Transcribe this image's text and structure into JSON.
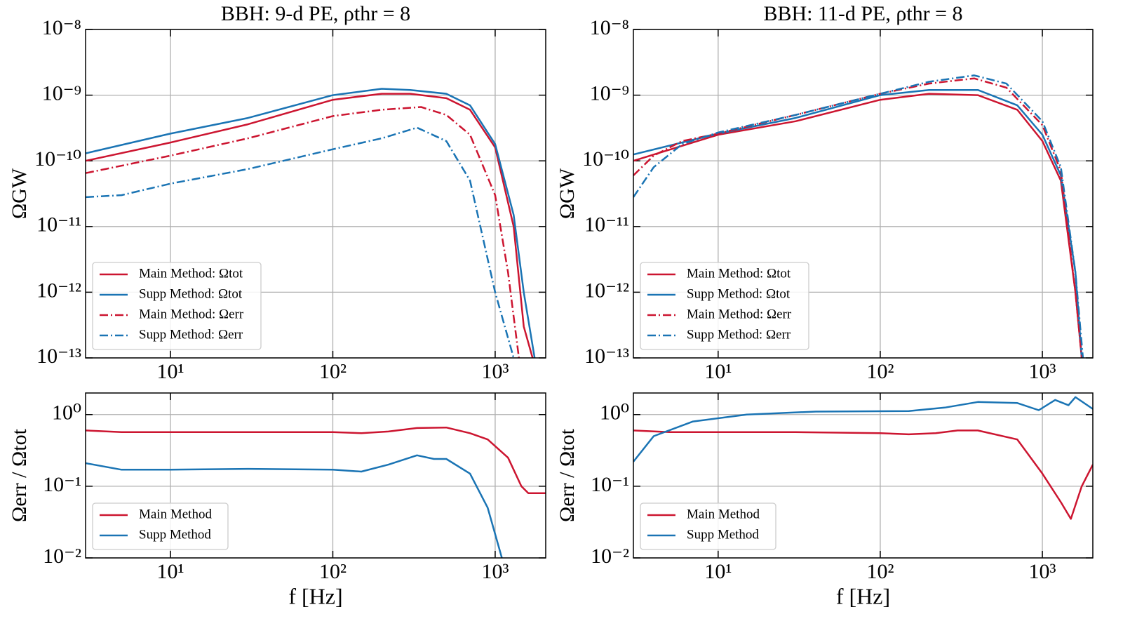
{
  "chart_data": [
    {
      "type": "line",
      "title": "BBH: 9-d PE, ρthr = 8",
      "ylabel": "ΩGW",
      "log_x": true,
      "log_y": true,
      "grid": true,
      "legend": "lower left",
      "xlim": [
        3,
        2048
      ],
      "xticks": [
        {
          "value": 10,
          "label": "10¹"
        },
        {
          "value": 100,
          "label": "10²"
        },
        {
          "value": 1000,
          "label": "10³"
        }
      ],
      "ylim": [
        1e-13,
        1e-08
      ],
      "yticks": [
        {
          "value": 1e-13,
          "label": "10⁻¹³"
        },
        {
          "value": 1e-12,
          "label": "10⁻¹²"
        },
        {
          "value": 1e-11,
          "label": "10⁻¹¹"
        },
        {
          "value": 1e-10,
          "label": "10⁻¹⁰"
        },
        {
          "value": 1e-09,
          "label": "10⁻⁹"
        },
        {
          "value": 1e-08,
          "label": "10⁻⁸"
        }
      ],
      "series": [
        {
          "name": "Main Method: Ωtot",
          "color": "#cc1530",
          "dash": "solid",
          "x": [
            3,
            10,
            30,
            100,
            200,
            300,
            500,
            700,
            1000,
            1300,
            1500,
            1700
          ],
          "values": [
            1e-10,
            1.9e-10,
            3.6e-10,
            8.5e-10,
            1.05e-09,
            1.05e-09,
            9e-10,
            6e-10,
            1.6e-10,
            1e-11,
            3e-13,
            1e-13
          ]
        },
        {
          "name": "Supp Method: Ωtot",
          "color": "#1a74b4",
          "dash": "solid",
          "x": [
            3,
            10,
            30,
            100,
            200,
            300,
            500,
            700,
            1000,
            1300,
            1500,
            1750
          ],
          "values": [
            1.3e-10,
            2.6e-10,
            4.5e-10,
            1e-09,
            1.25e-09,
            1.2e-09,
            1.05e-09,
            7e-10,
            1.8e-10,
            1.5e-11,
            1e-12,
            1e-13
          ]
        },
        {
          "name": "Main Method: Ωerr",
          "color": "#cc1530",
          "dash": "dashdot",
          "x": [
            3,
            10,
            30,
            100,
            200,
            350,
            500,
            700,
            1000,
            1200,
            1400
          ],
          "values": [
            6.5e-11,
            1.2e-10,
            2.2e-10,
            4.8e-10,
            6e-10,
            6.6e-10,
            5e-10,
            2.5e-10,
            3e-11,
            2e-12,
            1e-13
          ]
        },
        {
          "name": "Supp Method: Ωerr",
          "color": "#1a74b4",
          "dash": "dashdot",
          "x": [
            3,
            5,
            10,
            30,
            100,
            200,
            330,
            500,
            700,
            1000,
            1300
          ],
          "values": [
            2.8e-11,
            3e-11,
            4.5e-11,
            7.5e-11,
            1.5e-10,
            2.2e-10,
            3.2e-10,
            2e-10,
            5e-11,
            1e-12,
            1e-13
          ]
        }
      ]
    },
    {
      "type": "line",
      "xlabel": "f [Hz]",
      "ylabel": "Ωerr / Ωtot",
      "log_x": true,
      "log_y": true,
      "grid": true,
      "legend": "lower left",
      "xlim": [
        3,
        2048
      ],
      "xticks": [
        {
          "value": 10,
          "label": "10¹"
        },
        {
          "value": 100,
          "label": "10²"
        },
        {
          "value": 1000,
          "label": "10³"
        }
      ],
      "ylim": [
        0.01,
        2
      ],
      "yticks": [
        {
          "value": 0.01,
          "label": "10⁻²"
        },
        {
          "value": 0.1,
          "label": "10⁻¹"
        },
        {
          "value": 1,
          "label": "10⁰"
        }
      ],
      "series": [
        {
          "name": "Main Method",
          "color": "#cc1530",
          "dash": "solid",
          "x": [
            3,
            5,
            10,
            30,
            100,
            150,
            220,
            330,
            500,
            700,
            900,
            1200,
            1450,
            1600,
            2048
          ],
          "values": [
            0.6,
            0.57,
            0.57,
            0.57,
            0.57,
            0.55,
            0.58,
            0.65,
            0.66,
            0.55,
            0.45,
            0.25,
            0.1,
            0.08,
            0.08
          ]
        },
        {
          "name": "Supp Method",
          "color": "#1a74b4",
          "dash": "solid",
          "x": [
            3,
            5,
            10,
            30,
            100,
            150,
            220,
            330,
            420,
            500,
            700,
            900,
            1100
          ],
          "values": [
            0.21,
            0.17,
            0.17,
            0.175,
            0.17,
            0.16,
            0.2,
            0.27,
            0.24,
            0.24,
            0.15,
            0.05,
            0.01
          ]
        }
      ]
    },
    {
      "type": "line",
      "title": "BBH: 11-d PE, ρthr = 8",
      "ylabel": "ΩGW",
      "log_x": true,
      "log_y": true,
      "grid": true,
      "legend": "lower left",
      "xlim": [
        3,
        2048
      ],
      "xticks": [
        {
          "value": 10,
          "label": "10¹"
        },
        {
          "value": 100,
          "label": "10²"
        },
        {
          "value": 1000,
          "label": "10³"
        }
      ],
      "ylim": [
        1e-13,
        1e-08
      ],
      "yticks": [
        {
          "value": 1e-13,
          "label": "10⁻¹³"
        },
        {
          "value": 1e-12,
          "label": "10⁻¹²"
        },
        {
          "value": 1e-11,
          "label": "10⁻¹¹"
        },
        {
          "value": 1e-10,
          "label": "10⁻¹⁰"
        },
        {
          "value": 1e-09,
          "label": "10⁻⁹"
        },
        {
          "value": 1e-08,
          "label": "10⁻⁸"
        }
      ],
      "series": [
        {
          "name": "Main Method: Ωtot",
          "color": "#cc1530",
          "dash": "solid",
          "x": [
            3,
            10,
            30,
            100,
            200,
            400,
            700,
            1000,
            1300,
            1600,
            1750
          ],
          "values": [
            1e-10,
            2.5e-10,
            4e-10,
            8.5e-10,
            1.05e-09,
            1e-09,
            6e-10,
            2e-10,
            5e-11,
            1e-12,
            1e-13
          ]
        },
        {
          "name": "Supp Method: Ωtot",
          "color": "#1a74b4",
          "dash": "solid",
          "x": [
            3,
            10,
            30,
            100,
            200,
            400,
            700,
            1000,
            1300,
            1600,
            1750
          ],
          "values": [
            1.25e-10,
            2.6e-10,
            4.5e-10,
            1e-09,
            1.2e-09,
            1.2e-09,
            7e-10,
            2.5e-10,
            6e-11,
            2e-12,
            1e-13
          ]
        },
        {
          "name": "Main Method: Ωerr",
          "color": "#cc1530",
          "dash": "dashdot",
          "x": [
            3,
            4,
            6,
            10,
            30,
            100,
            200,
            380,
            600,
            1000,
            1300,
            1600,
            1750
          ],
          "values": [
            6e-11,
            1.2e-10,
            2e-10,
            2.6e-10,
            5e-10,
            1.05e-09,
            1.5e-09,
            1.8e-09,
            1.3e-09,
            3.5e-10,
            7e-11,
            1e-12,
            1e-13
          ]
        },
        {
          "name": "Supp Method: Ωerr",
          "color": "#1a74b4",
          "dash": "dashdot",
          "x": [
            3,
            4,
            6,
            10,
            30,
            100,
            200,
            380,
            600,
            1000,
            1300,
            1600,
            1780
          ],
          "values": [
            2.8e-11,
            8e-11,
            1.8e-10,
            2.7e-10,
            5e-10,
            1.05e-09,
            1.6e-09,
            2e-09,
            1.5e-09,
            4e-10,
            8e-11,
            2e-12,
            1e-13
          ]
        }
      ]
    },
    {
      "type": "line",
      "xlabel": "f [Hz]",
      "ylabel": "Ωerr / Ωtot",
      "log_x": true,
      "log_y": true,
      "grid": true,
      "legend": "lower left",
      "xlim": [
        3,
        2048
      ],
      "xticks": [
        {
          "value": 10,
          "label": "10¹"
        },
        {
          "value": 100,
          "label": "10²"
        },
        {
          "value": 1000,
          "label": "10³"
        }
      ],
      "ylim": [
        0.01,
        2
      ],
      "yticks": [
        {
          "value": 0.01,
          "label": "10⁻²"
        },
        {
          "value": 0.1,
          "label": "10⁻¹"
        },
        {
          "value": 1,
          "label": "10⁰"
        }
      ],
      "series": [
        {
          "name": "Main Method",
          "color": "#cc1530",
          "dash": "solid",
          "x": [
            3,
            5,
            10,
            30,
            100,
            150,
            220,
            300,
            400,
            700,
            1000,
            1300,
            1500,
            1750,
            2048
          ],
          "values": [
            0.6,
            0.57,
            0.57,
            0.57,
            0.55,
            0.53,
            0.55,
            0.6,
            0.6,
            0.45,
            0.15,
            0.06,
            0.035,
            0.1,
            0.2
          ]
        },
        {
          "name": "Supp Method",
          "color": "#1a74b4",
          "dash": "solid",
          "x": [
            3,
            4,
            7,
            15,
            40,
            150,
            250,
            400,
            700,
            950,
            1200,
            1450,
            1600,
            2048
          ],
          "values": [
            0.22,
            0.5,
            0.8,
            1.0,
            1.1,
            1.12,
            1.25,
            1.5,
            1.45,
            1.15,
            1.6,
            1.35,
            1.75,
            1.2
          ]
        }
      ]
    }
  ]
}
